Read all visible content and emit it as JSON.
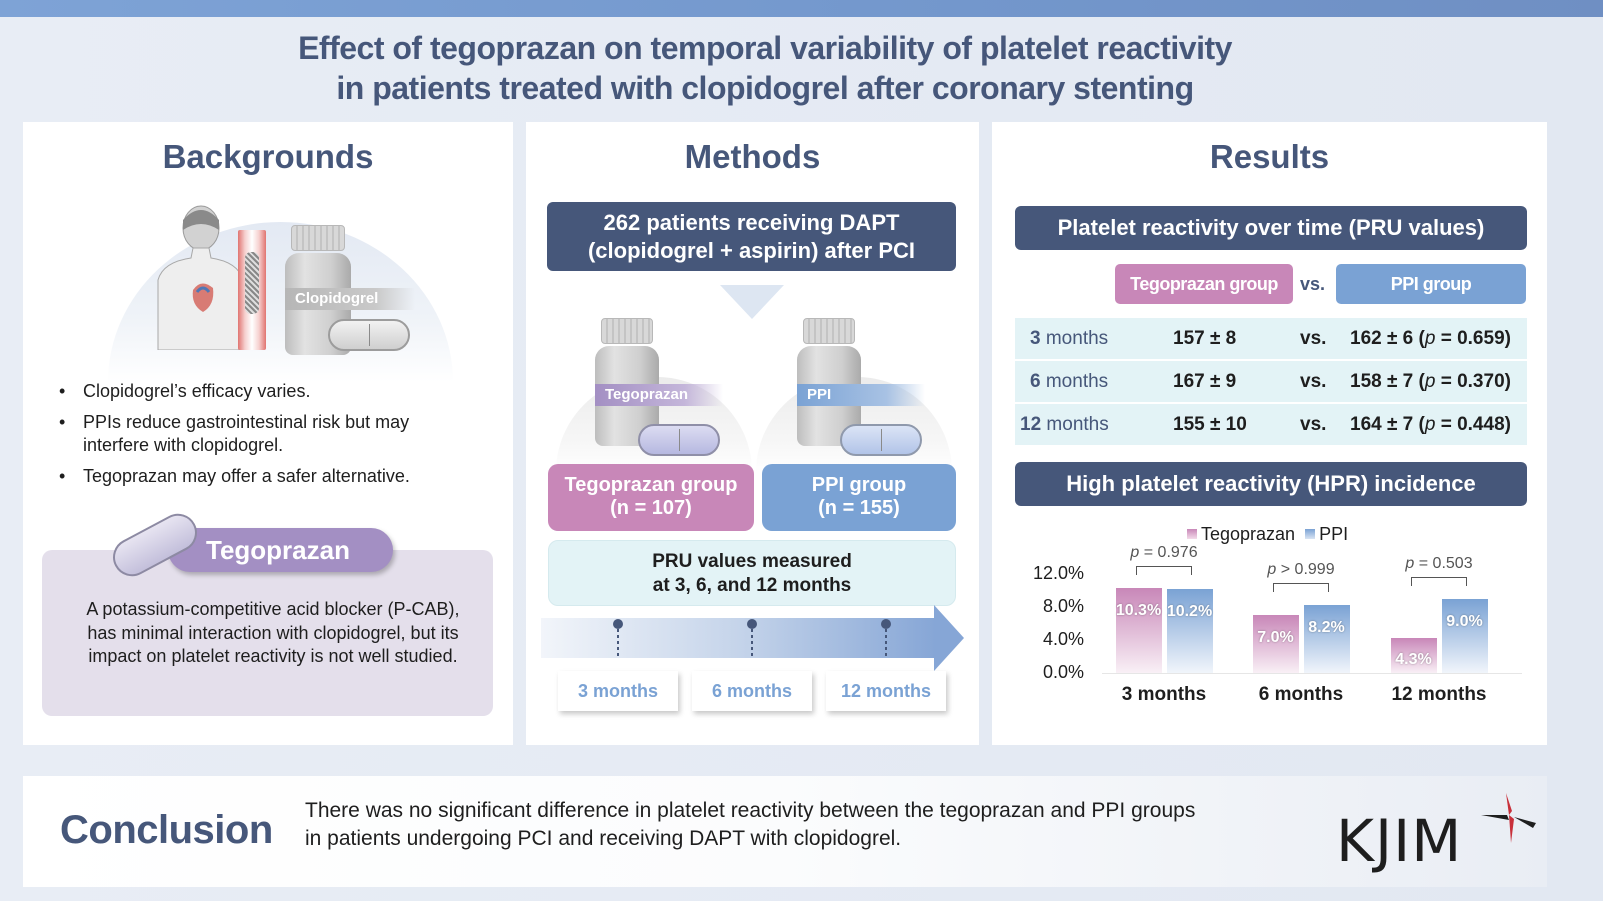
{
  "title": {
    "line1": "Effect of tegoprazan on temporal variability of platelet reactivity",
    "line2": "in patients treated with clopidogrel after coronary stenting"
  },
  "backgrounds": {
    "heading": "Backgrounds",
    "bottle_label": "Clopidogrel",
    "bullets": [
      "Clopidogrel’s efficacy varies.",
      "PPIs reduce gastrointestinal risk but may interfere with clopidogrel.",
      "Tegoprazan may offer a safer alternative."
    ],
    "tego_tag": "Tegoprazan",
    "tego_desc": "A potassium-competitive acid blocker (P-CAB), has minimal interaction with clopidogrel, but its impact on platelet reactivity is not well studied."
  },
  "methods": {
    "heading": "Methods",
    "population": {
      "line1": "262 patients receiving DAPT",
      "line2": "(clopidogrel + aspirin) after PCI"
    },
    "bottle_labels": [
      "Tegoprazan",
      "PPI"
    ],
    "groups": [
      {
        "name": "Tegoprazan group",
        "n": "(n = 107)"
      },
      {
        "name": "PPI group",
        "n": "(n = 155)"
      }
    ],
    "pru": {
      "line1": "PRU values measured",
      "line2": "at 3, 6, and 12 months"
    },
    "timepoints": [
      "3 months",
      "6 months",
      "12 months"
    ]
  },
  "results": {
    "heading": "Results",
    "pru_header": "Platelet reactivity over time (PRU values)",
    "chip_tego": "Tegoprazan group",
    "chip_vs": "vs.",
    "chip_ppi": "PPI group",
    "pru_rows": [
      {
        "num": "3",
        "unit": " months",
        "tego": "157 ± 8",
        "vs": "vs.",
        "ppi": "162 ± 6 (",
        "p": "p",
        "pval": " = 0.659)"
      },
      {
        "num": "6",
        "unit": " months",
        "tego": "167 ± 9",
        "vs": "vs.",
        "ppi": "158 ± 7 (",
        "p": "p",
        "pval": " = 0.370)"
      },
      {
        "num": "12",
        "unit": " months",
        "tego": "155 ± 10",
        "vs": "vs.",
        "ppi": "164 ± 7 (",
        "p": "p",
        "pval": " = 0.448)"
      }
    ],
    "hpr_header": "High platelet reactivity (HPR) incidence"
  },
  "chart_data": {
    "type": "bar",
    "title": "High platelet reactivity (HPR) incidence",
    "categories": [
      "3 months",
      "6 months",
      "12 months"
    ],
    "series": [
      {
        "name": "Tegoprazan",
        "color": "#c887b8",
        "values": [
          10.3,
          7.0,
          4.3
        ],
        "labels": [
          "10.3%",
          "7.0%",
          "4.3%"
        ]
      },
      {
        "name": "PPI",
        "color": "#7aa2d4",
        "values": [
          10.2,
          8.2,
          9.0
        ],
        "labels": [
          "10.2%",
          "8.2%",
          "9.0%"
        ]
      }
    ],
    "p_values": [
      {
        "sym": "p",
        "rest": " = 0.976"
      },
      {
        "sym": "p",
        "rest": " > 0.999"
      },
      {
        "sym": "p",
        "rest": " = 0.503"
      }
    ],
    "yticks": [
      "12.0%",
      "8.0%",
      "4.0%",
      "0.0%"
    ],
    "ylim": [
      0,
      12
    ],
    "xlabel": "",
    "ylabel": "",
    "legend": "top-center",
    "grid": false
  },
  "conclusion": {
    "heading": "Conclusion",
    "line1": "There was no significant difference in platelet reactivity between the tegoprazan and PPI groups",
    "line2": "in patients undergoing PCI and receiving DAPT with clopidogrel.",
    "logo": "KJIM"
  },
  "colors": {
    "navy": "#46577a",
    "tego_pink": "#c887b8",
    "ppi_blue": "#7aa2d4",
    "tego_purple": "#a38fc3",
    "logo_red": "#c8303a"
  }
}
